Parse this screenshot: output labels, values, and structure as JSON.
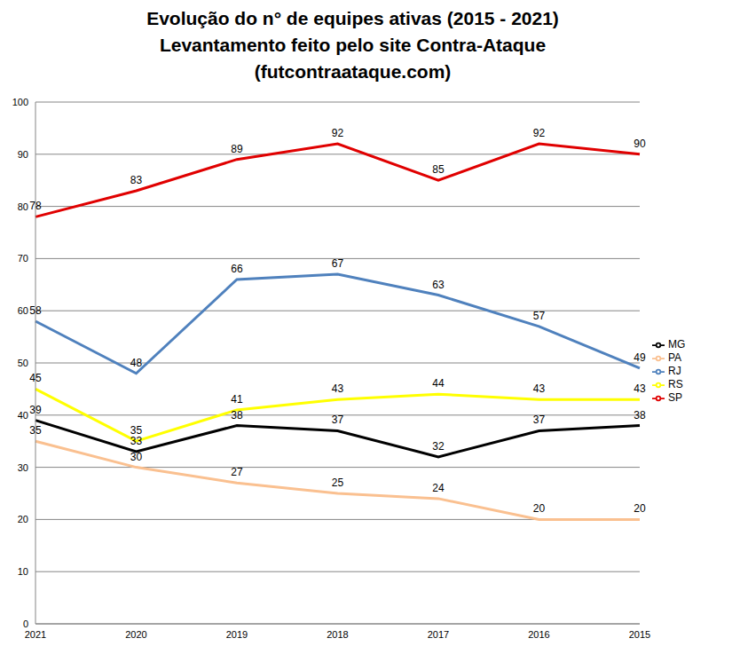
{
  "chart_data": {
    "type": "line",
    "title": "Evolução do n° de equipes ativas (2015 - 2021)\nLevantamento feito pelo site Contra-Ataque\n(futcontraataque.com)",
    "categories": [
      "2021",
      "2020",
      "2019",
      "2018",
      "2017",
      "2016",
      "2015"
    ],
    "series": [
      {
        "name": "RS",
        "color": "#ffff00",
        "values": [
          45,
          35,
          41,
          43,
          44,
          43,
          43
        ]
      },
      {
        "name": "RJ",
        "color": "#4f81bd",
        "values": [
          58,
          48,
          66,
          67,
          63,
          57,
          49
        ]
      },
      {
        "name": "SP",
        "color": "#e00000",
        "values": [
          78,
          83,
          89,
          92,
          85,
          92,
          90
        ]
      },
      {
        "name": "MG",
        "color": "#000000",
        "values": [
          39,
          33,
          38,
          37,
          32,
          37,
          38
        ]
      },
      {
        "name": "PA",
        "color": "#fac090",
        "values": [
          35,
          30,
          27,
          25,
          24,
          20,
          20
        ]
      }
    ],
    "ylim": [
      0,
      100
    ],
    "yticks": [
      0,
      10,
      20,
      30,
      40,
      50,
      60,
      70,
      80,
      90,
      100
    ],
    "grid": true,
    "legend": "right",
    "data_labels": true
  }
}
